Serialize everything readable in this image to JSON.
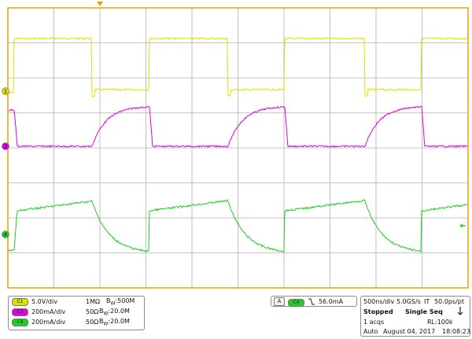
{
  "scope": {
    "colors": {
      "ch1": "#e0e000",
      "ch3": "#e000e0",
      "ch4": "#22cc22",
      "grid": "#b0b0b0",
      "frame": "#f0a000"
    },
    "markers": {
      "ch1": "1",
      "ch3": "3",
      "ch4": "4"
    }
  },
  "channels": [
    {
      "badge": "C1",
      "color": "#e0e000",
      "scale": "5.0V/div",
      "impedance": "1MΩ",
      "bw_label": "B",
      "bw_sub": "W",
      "bw_value": ":500M"
    },
    {
      "badge": "C3",
      "color": "#e000e0",
      "scale": "200mA/div",
      "impedance": "50Ω",
      "bw_label": "B",
      "bw_sub": "W",
      "bw_value": ":20.0M"
    },
    {
      "badge": "C4",
      "color": "#22cc22",
      "scale": "200mA/div",
      "impedance": "50Ω",
      "bw_label": "B",
      "bw_sub": "W",
      "bw_value": ":20.0M"
    }
  ],
  "trigger": {
    "mode_badge": "A",
    "source_badge": "C4",
    "level": "56.0mA"
  },
  "acquisition": {
    "timebase": "500ns/div",
    "sample_rate": "5.0GS/s",
    "it_label": "IT",
    "ps_per_pt": "50.0ps/pt",
    "state": "Stopped",
    "mode": "Single Seq",
    "acqs": "1 acqs",
    "record_length": "RL:100k",
    "trigger_mode": "Auto",
    "date": "August 04, 2017",
    "time": "18:08:23"
  }
}
